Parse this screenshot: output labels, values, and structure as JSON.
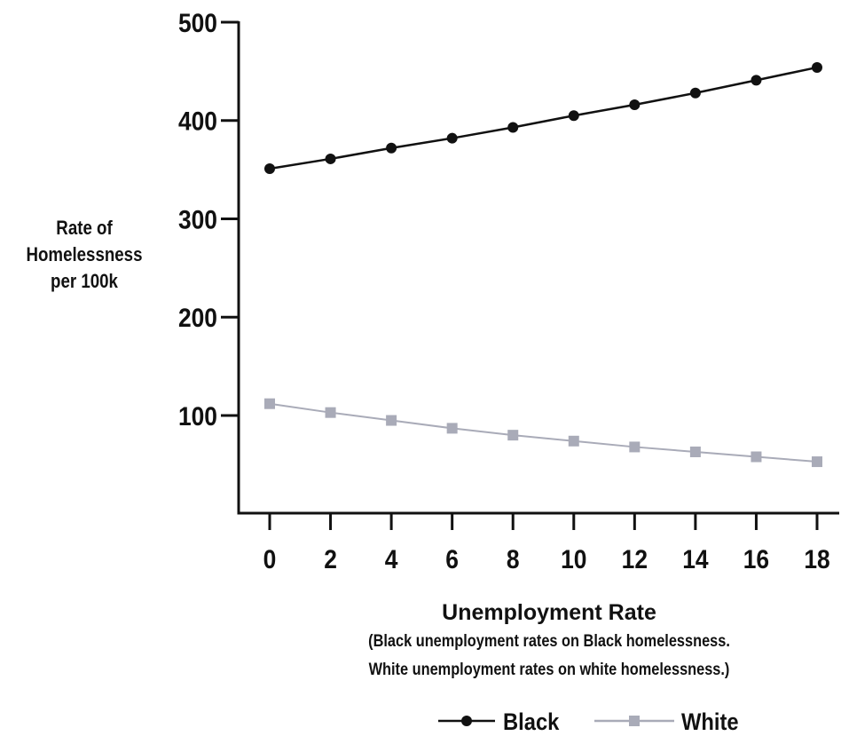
{
  "chart_data": {
    "type": "line",
    "x": [
      0,
      2,
      4,
      6,
      8,
      10,
      12,
      14,
      16,
      18
    ],
    "xticks": [
      "0",
      "2",
      "4",
      "6",
      "8",
      "10",
      "12",
      "14",
      "16",
      "18"
    ],
    "yticks": [
      "100",
      "200",
      "300",
      "400",
      "500"
    ],
    "ytick_values": [
      100,
      200,
      300,
      400,
      500
    ],
    "ylim": [
      0,
      500
    ],
    "xlim": [
      -0.9,
      18.7
    ],
    "ylabel": [
      "Rate of",
      "Homelessness",
      "per 100k"
    ],
    "xlabel": "Unemployment Rate",
    "xlabel_note": [
      "(Black unemployment rates on Black homelessness.",
      "White unemployment rates on white homelessness.)"
    ],
    "grid": false,
    "legend_position": "bottom",
    "series": [
      {
        "name": "Black",
        "color": "#111111",
        "marker": "circle",
        "values": [
          351,
          361,
          372,
          382,
          393,
          405,
          416,
          428,
          441,
          454
        ]
      },
      {
        "name": "White",
        "color": "#a9abb8",
        "marker": "square",
        "values": [
          112,
          103,
          95,
          87,
          80,
          74,
          68,
          63,
          58,
          53
        ]
      }
    ]
  }
}
